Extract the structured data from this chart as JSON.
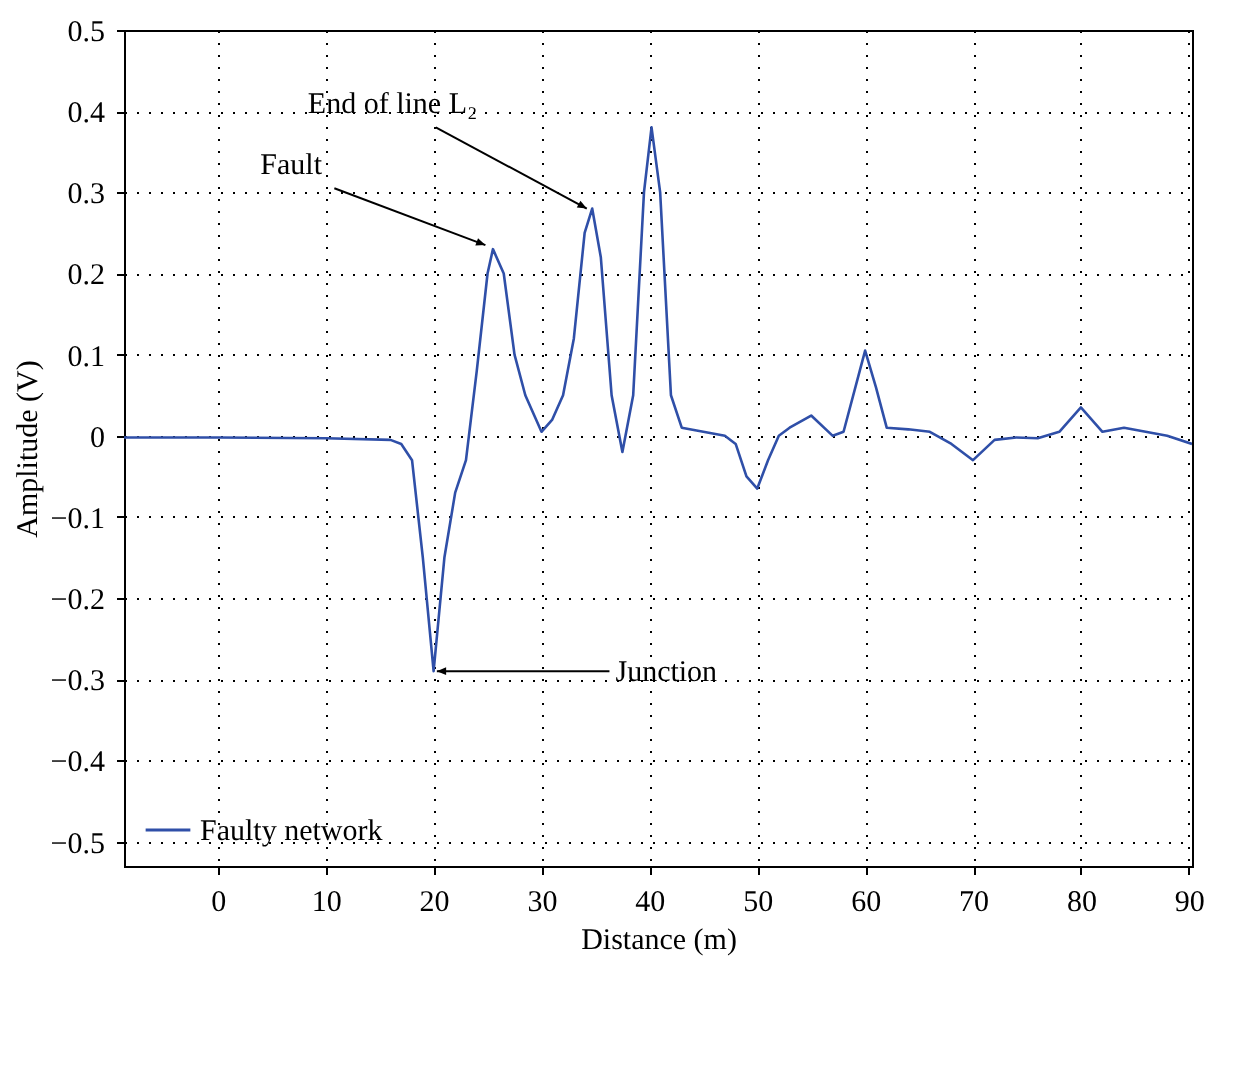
{
  "chart_data": {
    "type": "line",
    "xlabel": "Distance (m)",
    "ylabel": "Amplitude (V)",
    "xlim": [
      -8.7,
      90.3
    ],
    "xticks": [
      0,
      10,
      20,
      30,
      40,
      50,
      60,
      70,
      80,
      90
    ],
    "ylim": [
      -0.53,
      0.5
    ],
    "yticks": [
      -0.5,
      -0.4,
      -0.3,
      -0.2,
      -0.1,
      0,
      0.1,
      0.2,
      0.3,
      0.4,
      0.5
    ],
    "grid": true,
    "legend": "bottom",
    "line_style": "solid",
    "marker": "none",
    "series": [
      {
        "name": "Faulty network",
        "color": "#2f4fa8",
        "x": [
          -8.7,
          0,
          10,
          16,
          17,
          18,
          19,
          20,
          21,
          22,
          23,
          24,
          25,
          25.5,
          26.5,
          27.5,
          28.5,
          30,
          31,
          32,
          33,
          34,
          34.7,
          35.5,
          36.5,
          37.5,
          38.5,
          39.5,
          40.2,
          41,
          42,
          43,
          45,
          47,
          48,
          49,
          50,
          51,
          52,
          53,
          55,
          57,
          58,
          59.5,
          60,
          61,
          62,
          64,
          66,
          68,
          70,
          72,
          74,
          76,
          78,
          80,
          82,
          84,
          86,
          88,
          90.3
        ],
        "values": [
          -0.002,
          -0.002,
          -0.003,
          -0.005,
          -0.01,
          -0.03,
          -0.15,
          -0.29,
          -0.15,
          -0.07,
          -0.03,
          0.08,
          0.2,
          0.23,
          0.2,
          0.1,
          0.05,
          0.005,
          0.02,
          0.05,
          0.12,
          0.25,
          0.28,
          0.22,
          0.05,
          -0.02,
          0.05,
          0.3,
          0.38,
          0.3,
          0.05,
          0.01,
          0.005,
          0.0,
          -0.01,
          -0.05,
          -0.065,
          -0.03,
          0.0,
          0.01,
          0.025,
          0.0,
          0.005,
          0.08,
          0.105,
          0.06,
          0.01,
          0.008,
          0.005,
          -0.01,
          -0.03,
          -0.005,
          -0.002,
          -0.003,
          0.005,
          0.035,
          0.005,
          0.01,
          0.005,
          0.0,
          -0.01
        ]
      }
    ],
    "annotations": [
      {
        "text": "End of line L₂",
        "x": 34.2,
        "y": 0.28
      },
      {
        "text": "Fault",
        "x": 24.8,
        "y": 0.235
      },
      {
        "text": "Junction",
        "x": 20.3,
        "y": -0.29
      }
    ]
  }
}
